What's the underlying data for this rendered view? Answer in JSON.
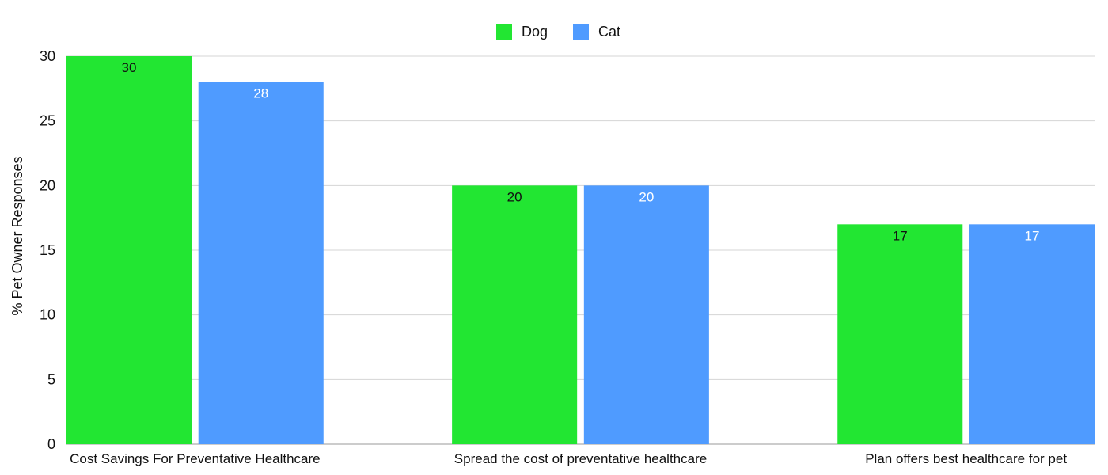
{
  "chart_data": {
    "type": "bar",
    "categories": [
      "Cost Savings For Preventative Healthcare",
      "Spread the cost of preventative healthcare",
      "Plan offers best healthcare for pet"
    ],
    "series": [
      {
        "name": "Dog",
        "color": "#22e632",
        "label_color": "#111111",
        "values": [
          30,
          20,
          17
        ]
      },
      {
        "name": "Cat",
        "color": "#4f9bff",
        "label_color": "#ffffff",
        "values": [
          28,
          20,
          17
        ]
      }
    ],
    "title": "",
    "xlabel": "",
    "ylabel": "% Pet Owner Responses",
    "ylim": [
      0,
      30
    ],
    "yticks": [
      0,
      5,
      10,
      15,
      20,
      25,
      30
    ],
    "grid": true,
    "legend_position": "top-center",
    "data_labels": true
  }
}
